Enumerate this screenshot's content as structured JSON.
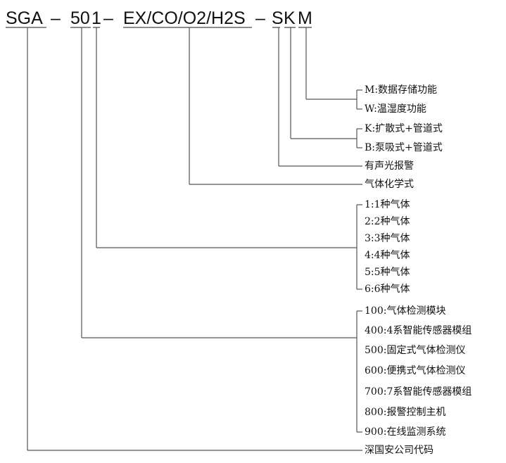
{
  "model_code": {
    "prefix": "SGA",
    "sep1": "–",
    "series": "50",
    "gas_count": "1",
    "sep2": "–",
    "gases": "EX/CO/O2/H2S",
    "sep3": "–",
    "alarm": "S",
    "sampling": "K",
    "function": "M"
  },
  "function_options": [
    "M:数据存储功能",
    "W:温湿度功能"
  ],
  "sampling_options": [
    "K:扩散式+管道式",
    "B:泵吸式+管道式"
  ],
  "alarm_label": "有声光报警",
  "gases_label": "气体化学式",
  "gas_count_options": [
    "1:1种气体",
    "2:2种气体",
    "3:3种气体",
    "4:4种气体",
    "5:5种气体",
    "6:6种气体"
  ],
  "series_options": [
    "100:气体检测模块",
    "400:4系智能传感器模组",
    "500:固定式气体检测仪",
    "600:便携式气体检测仪",
    "700:7系智能传感器模组",
    "800:报警控制主机",
    "900:在线监测系统"
  ],
  "prefix_label": "深国安公司代码"
}
